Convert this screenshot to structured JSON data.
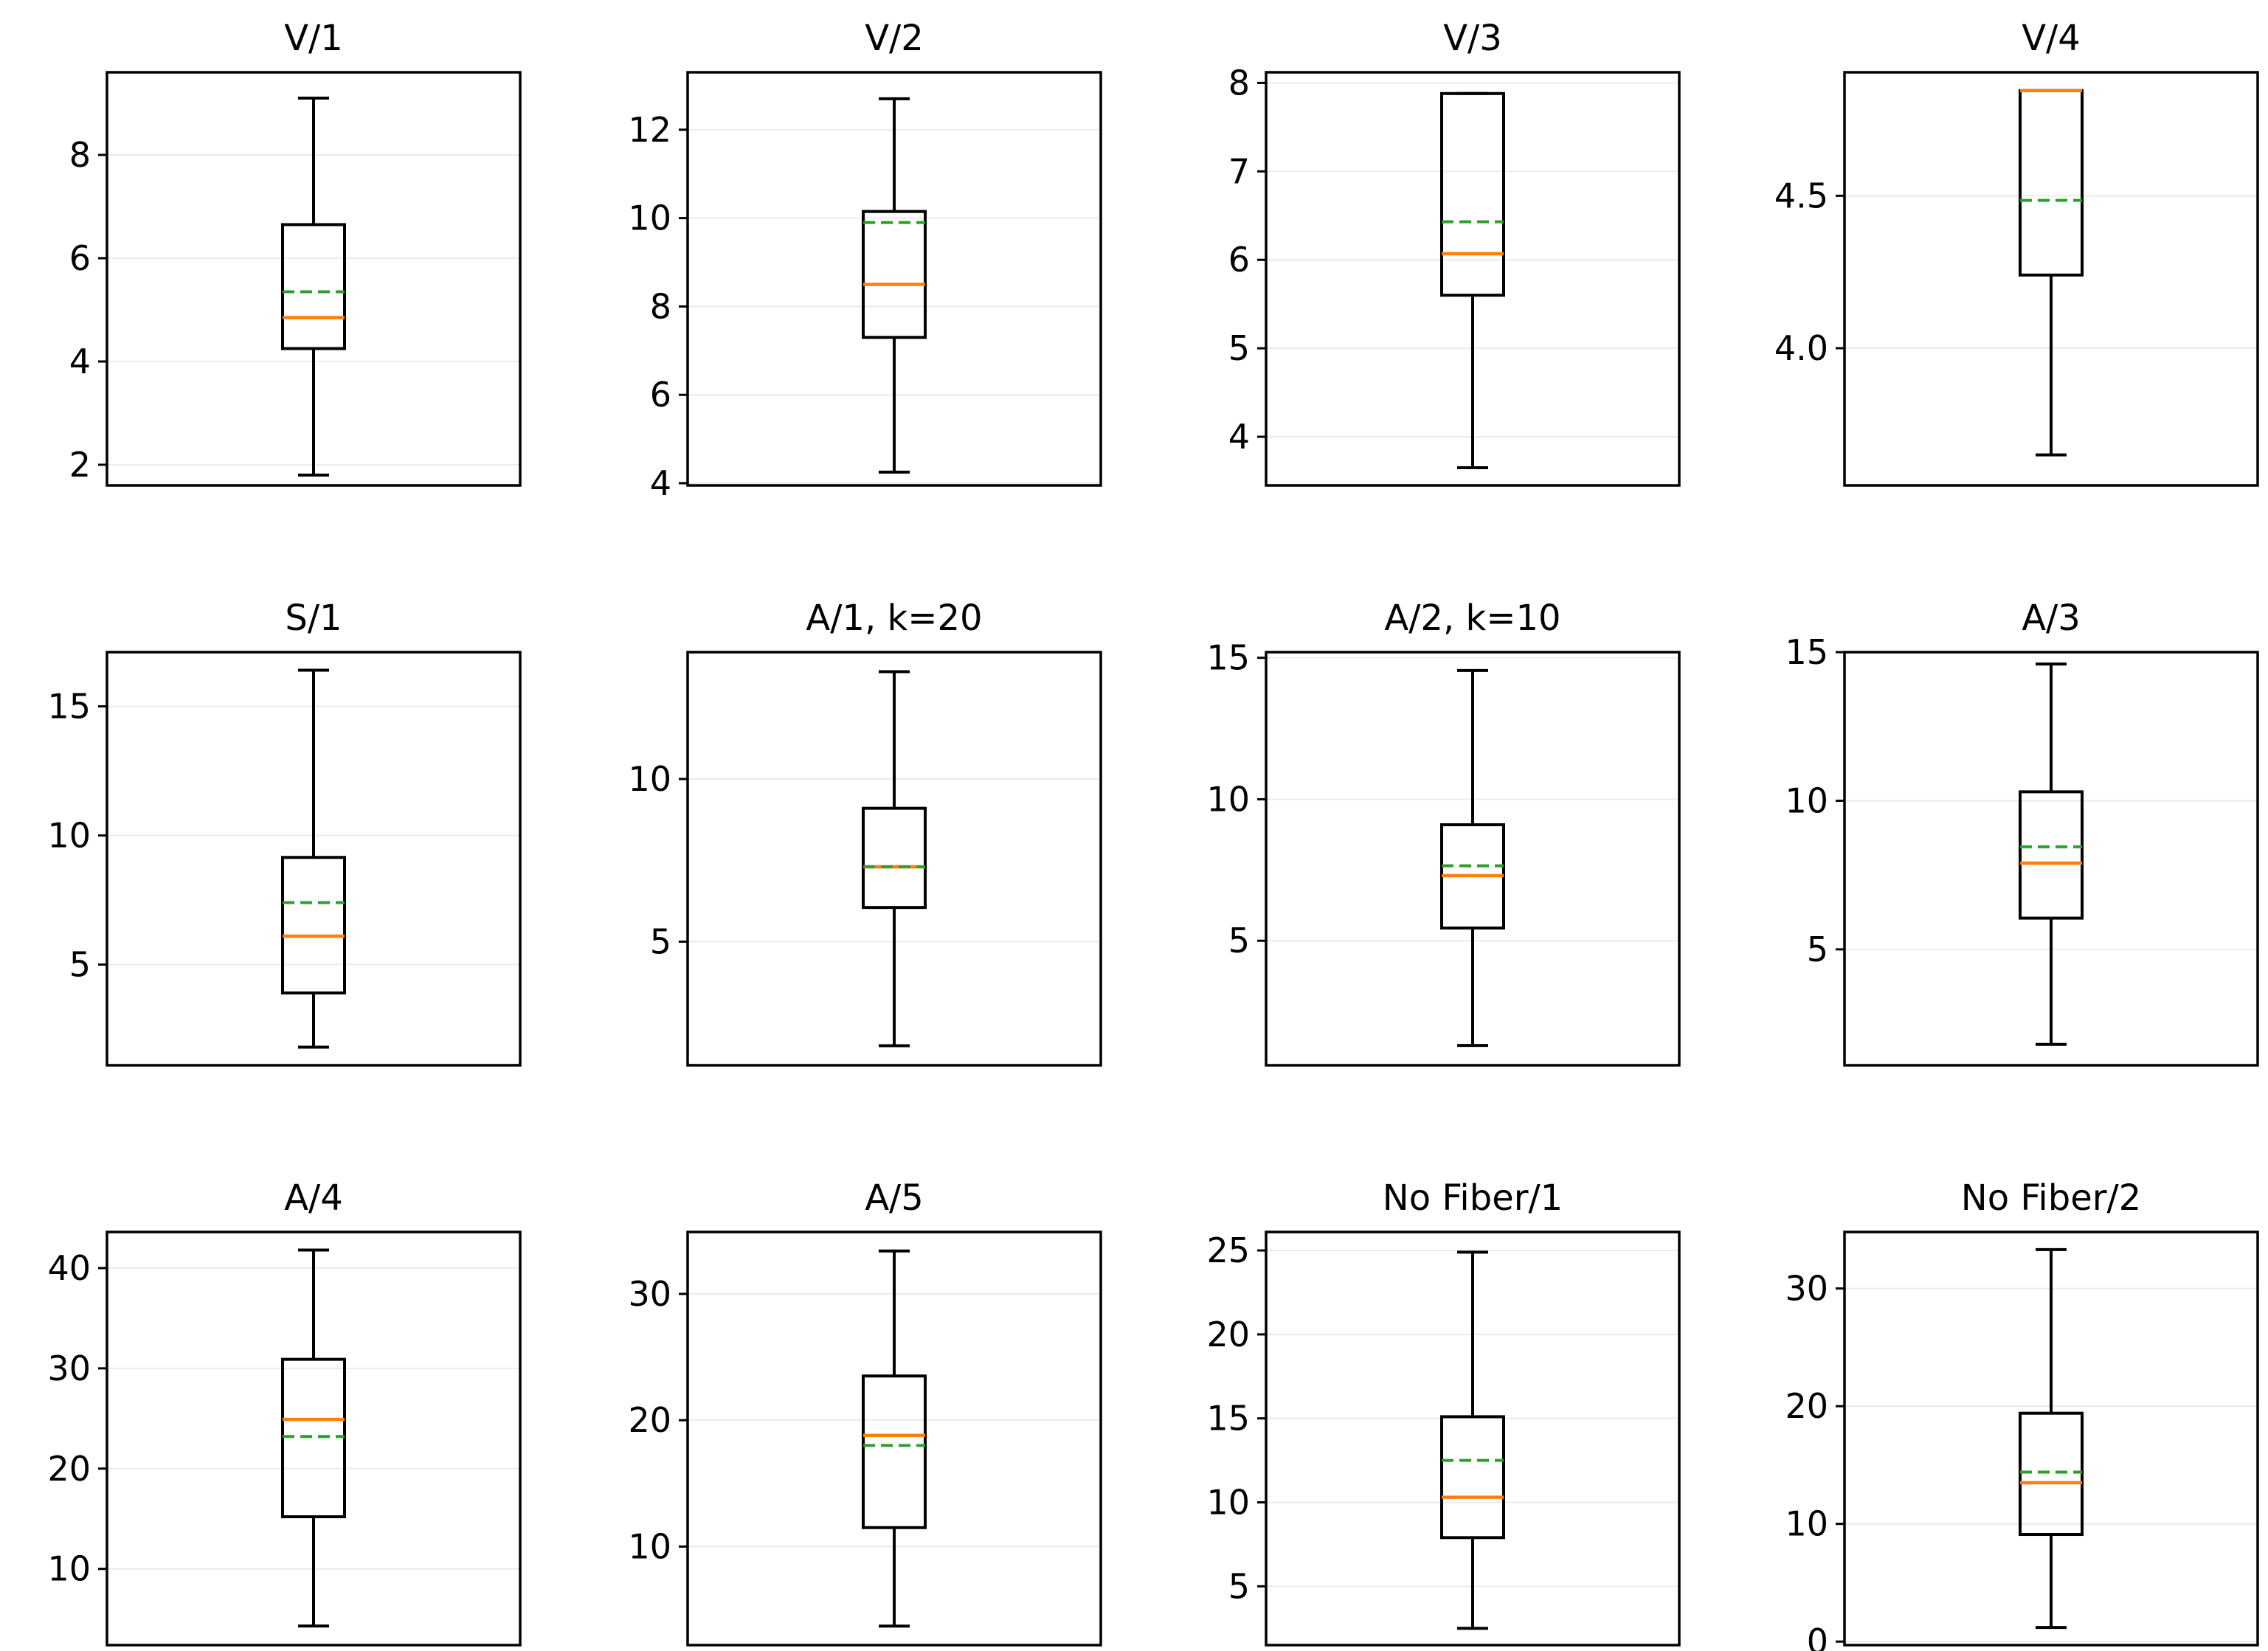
{
  "colors": {
    "median": "#ff7f0e",
    "mean": "#2ca02c",
    "box": "#000000",
    "grid": "#ebebeb"
  },
  "chart_data": [
    {
      "type": "box",
      "title": "V/1",
      "ylim": [
        1.6,
        9.6
      ],
      "yticks": [
        2,
        4,
        6,
        8
      ],
      "ytick_labels": [
        "2",
        "4",
        "6",
        "8"
      ],
      "whisker_low": 1.8,
      "q1": 4.25,
      "median": 4.85,
      "mean": 5.35,
      "q3": 6.65,
      "whisker_high": 9.1,
      "grid": true
    },
    {
      "type": "box",
      "title": "V/2",
      "ylim": [
        3.95,
        13.3
      ],
      "yticks": [
        4,
        6,
        8,
        10,
        12
      ],
      "ytick_labels": [
        "4",
        "6",
        "8",
        "10",
        "12"
      ],
      "whisker_low": 4.25,
      "q1": 7.3,
      "median": 8.5,
      "mean": 9.9,
      "q3": 10.15,
      "whisker_high": 12.7,
      "grid": true
    },
    {
      "type": "box",
      "title": "V/3",
      "ylim": [
        3.45,
        8.12
      ],
      "yticks": [
        4,
        5,
        6,
        7,
        8
      ],
      "ytick_labels": [
        "4",
        "5",
        "6",
        "7",
        "8"
      ],
      "whisker_low": 3.65,
      "q1": 5.6,
      "median": 6.07,
      "mean": 6.43,
      "q3": 7.88,
      "whisker_high": 7.88,
      "grid": true
    },
    {
      "type": "box",
      "title": "V/4",
      "ylim": [
        3.55,
        4.905
      ],
      "yticks": [
        4.0,
        4.5
      ],
      "ytick_labels": [
        "4.0",
        "4.5"
      ],
      "whisker_low": 3.65,
      "q1": 4.24,
      "median": 4.845,
      "mean": 4.485,
      "q3": 4.845,
      "whisker_high": 4.845,
      "grid": true
    },
    {
      "type": "box",
      "title": "S/1",
      "ylim": [
        1.1,
        17.1
      ],
      "yticks": [
        5,
        10,
        15
      ],
      "ytick_labels": [
        "5",
        "10",
        "15"
      ],
      "whisker_low": 1.8,
      "q1": 3.9,
      "median": 6.1,
      "mean": 7.4,
      "q3": 9.15,
      "whisker_high": 16.4,
      "grid": true
    },
    {
      "type": "box",
      "title": "A/1, k=20",
      "ylim": [
        1.2,
        13.9
      ],
      "yticks": [
        5,
        10
      ],
      "ytick_labels": [
        "5",
        "10"
      ],
      "whisker_low": 1.8,
      "q1": 6.05,
      "median": 7.3,
      "mean": 7.3,
      "q3": 9.1,
      "whisker_high": 13.3,
      "grid": true
    },
    {
      "type": "box",
      "title": "A/2, k=10",
      "ylim": [
        0.6,
        15.2
      ],
      "yticks": [
        5,
        10,
        15
      ],
      "ytick_labels": [
        "5",
        "10",
        "15"
      ],
      "whisker_low": 1.3,
      "q1": 5.45,
      "median": 7.3,
      "mean": 7.65,
      "q3": 9.1,
      "whisker_high": 14.55,
      "grid": true
    },
    {
      "type": "box",
      "title": "A/3",
      "ylim": [
        1.1,
        15.0
      ],
      "yticks": [
        5,
        10,
        15
      ],
      "ytick_labels": [
        "5",
        "10",
        "15"
      ],
      "whisker_low": 1.8,
      "q1": 6.05,
      "median": 7.9,
      "mean": 8.45,
      "q3": 10.3,
      "whisker_high": 14.6,
      "grid": true
    },
    {
      "type": "box",
      "title": "A/4",
      "ylim": [
        2.4,
        43.6
      ],
      "yticks": [
        10,
        20,
        30,
        40
      ],
      "ytick_labels": [
        "10",
        "20",
        "30",
        "40"
      ],
      "whisker_low": 4.3,
      "q1": 15.2,
      "median": 24.9,
      "mean": 23.2,
      "q3": 30.9,
      "whisker_high": 41.8,
      "grid": true
    },
    {
      "type": "box",
      "title": "A/5",
      "ylim": [
        2.2,
        34.9
      ],
      "yticks": [
        10,
        20,
        30
      ],
      "ytick_labels": [
        "10",
        "20",
        "30"
      ],
      "whisker_low": 3.7,
      "q1": 11.5,
      "median": 18.8,
      "mean": 18.0,
      "q3": 23.5,
      "whisker_high": 33.4,
      "grid": true
    },
    {
      "type": "box",
      "title": "No Fiber/1",
      "ylim": [
        1.5,
        26.1
      ],
      "yticks": [
        5,
        10,
        15,
        20,
        25
      ],
      "ytick_labels": [
        "5",
        "10",
        "15",
        "20",
        "25"
      ],
      "whisker_low": 2.5,
      "q1": 7.9,
      "median": 10.3,
      "mean": 12.5,
      "q3": 15.1,
      "whisker_high": 24.9,
      "grid": true
    },
    {
      "type": "box",
      "title": "No Fiber/2",
      "ylim": [
        -0.3,
        34.8
      ],
      "yticks": [
        0,
        10,
        20,
        30
      ],
      "ytick_labels": [
        "0",
        "10",
        "20",
        "30"
      ],
      "whisker_low": 1.2,
      "q1": 9.1,
      "median": 13.5,
      "mean": 14.4,
      "q3": 19.4,
      "whisker_high": 33.3,
      "grid": true
    }
  ]
}
